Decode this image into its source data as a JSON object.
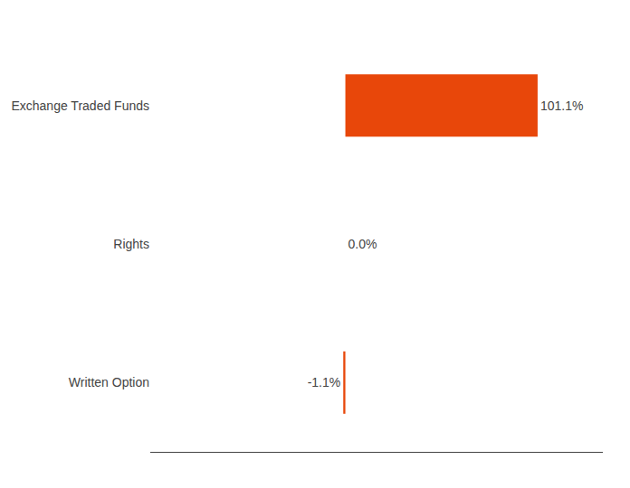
{
  "chart_data": {
    "type": "bar",
    "orientation": "horizontal",
    "categories": [
      "Exchange Traded Funds",
      "Rights",
      "Written Option"
    ],
    "values": [
      101.1,
      0.0,
      -1.1
    ],
    "value_labels": [
      "101.1%",
      "0.0%",
      "-1.1%"
    ],
    "data_labels": true,
    "color": "#E8470A",
    "xlim": [
      -102.6,
      135.4
    ],
    "grid": false,
    "tick_labels": "y"
  }
}
